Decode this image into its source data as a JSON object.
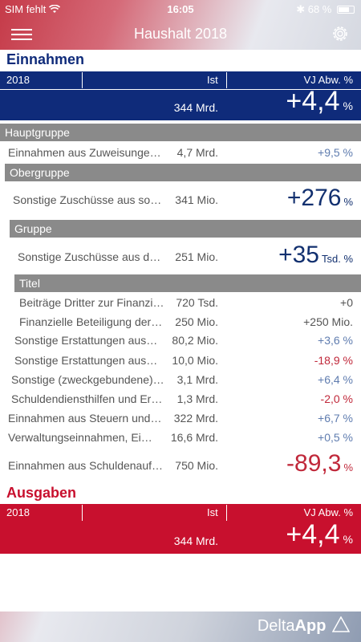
{
  "status": {
    "carrier": "SIM fehlt",
    "time": "16:05",
    "battery": "68 %"
  },
  "header": {
    "title": "Haushalt 2018"
  },
  "einnahmen": {
    "title": "Einnahmen",
    "col_year": "2018",
    "col_ist": "Ist",
    "col_vj": "VJ Abw. %",
    "total_amount": "344 Mrd.",
    "total_change": "+4,4",
    "total_unit": "%",
    "hauptgruppe": "Hauptgruppe",
    "row1": {
      "name": "Einnahmen aus Zuweisunge…",
      "amount": "4,7 Mrd.",
      "change": "+9,5",
      "unit": "%"
    },
    "obergruppe": "Obergruppe",
    "row2": {
      "name": "Sonstige Zuschüsse aus son…",
      "amount": "341 Mio.",
      "change": "+276",
      "unit": "%"
    },
    "gruppe": "Gruppe",
    "row3": {
      "name": "Sonstige Zuschüsse aus de…",
      "amount": "251 Mio.",
      "change": "+35",
      "unit": "Tsd. %"
    },
    "titel": "Titel",
    "row4": {
      "name": "Beiträge Dritter zur Finanzi…",
      "amount": "720 Tsd.",
      "change": "+0"
    },
    "row5": {
      "name": "Finanzielle Beteiligung der…",
      "amount": "250 Mio.",
      "change": "+250 Mio."
    },
    "row6": {
      "name": "Sonstige Erstattungen aus…",
      "amount": "80,2 Mio.",
      "change": "+3,6",
      "unit": "%"
    },
    "row7": {
      "name": "Sonstige Erstattungen aus…",
      "amount": "10,0 Mio.",
      "change": "-18,9",
      "unit": "%"
    },
    "row8": {
      "name": "Sonstige (zweckgebundene)…",
      "amount": "3,1 Mrd.",
      "change": "+6,4",
      "unit": "%"
    },
    "row9": {
      "name": "Schuldendiensthilfen und Er…",
      "amount": "1,3 Mrd.",
      "change": "-2,0",
      "unit": "%"
    },
    "row10": {
      "name": "Einnahmen aus Steuern und…",
      "amount": "322 Mrd.",
      "change": "+6,7",
      "unit": "%"
    },
    "row11": {
      "name": "Verwaltungseinnahmen, Ei…",
      "amount": "16,6 Mrd.",
      "change": "+0,5",
      "unit": "%"
    },
    "row12": {
      "name": "Einnahmen aus Schuldenauf…",
      "amount": "750 Mio.",
      "change": "-89,3",
      "unit": "%"
    }
  },
  "ausgaben": {
    "title": "Ausgaben",
    "col_year": "2018",
    "col_ist": "Ist",
    "col_vj": "VJ Abw. %",
    "total_amount": "344 Mrd.",
    "total_change": "+4,4",
    "total_unit": "%"
  },
  "footer": {
    "logo_a": "Delta",
    "logo_b": "App"
  },
  "colors": {
    "blue": "#0f2b7a",
    "red": "#c8102e",
    "group": "#8a8a8a"
  }
}
